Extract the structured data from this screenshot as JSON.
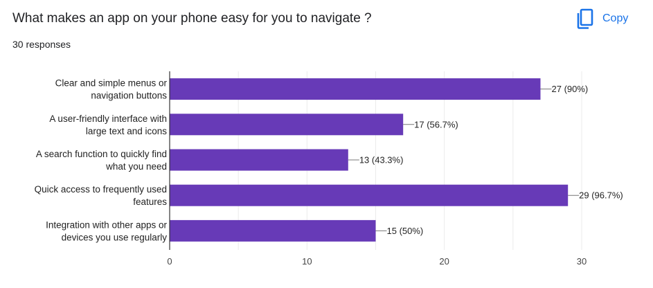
{
  "header": {
    "question_title": "What makes an app on your phone easy for you to navigate ?",
    "responses": "30 responses",
    "copy_label": "Copy",
    "copy_icon": "copy-icon"
  },
  "colors": {
    "bar": "#673ab7",
    "accent": "#1a73e8",
    "grid": "#ebebeb",
    "axis": "#333333"
  },
  "chart_data": {
    "type": "bar",
    "orientation": "horizontal",
    "categories": [
      [
        "Clear and simple menus or",
        "navigation buttons"
      ],
      [
        "A user-friendly interface with",
        "large text and icons"
      ],
      [
        "A search function to quickly find",
        "what you need"
      ],
      [
        "Quick access to frequently used",
        "features"
      ],
      [
        "Integration with other apps or",
        "devices you use regularly"
      ]
    ],
    "values": [
      27,
      17,
      13,
      29,
      15
    ],
    "data_labels": [
      "27 (90%)",
      "17 (56.7%)",
      "13 (43.3%)",
      "29 (96.7%)",
      "15 (50%)"
    ],
    "xlim": [
      0,
      30
    ],
    "xticks": [
      0,
      10,
      20,
      30
    ],
    "grid": true,
    "title": "",
    "xlabel": "",
    "ylabel": ""
  }
}
